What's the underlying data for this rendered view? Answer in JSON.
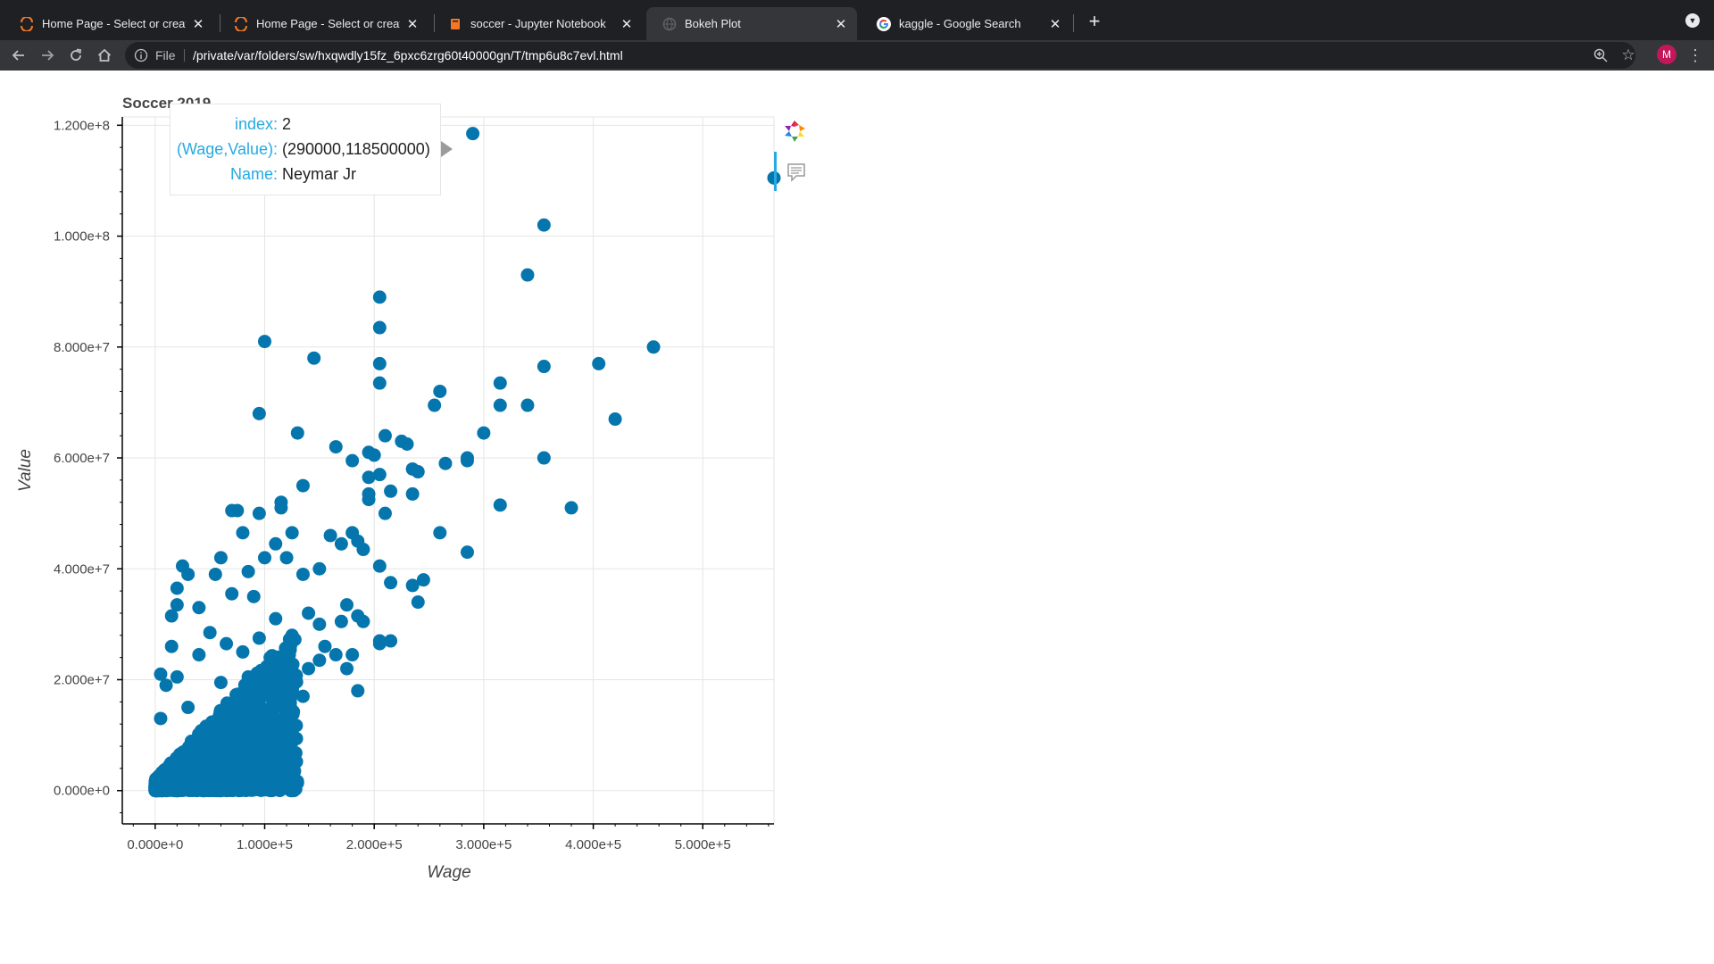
{
  "browser": {
    "tabs": [
      {
        "title": "Home Page - Select or create a",
        "icon": "jupyter-icon",
        "active": false
      },
      {
        "title": "Home Page - Select or create a",
        "icon": "jupyter-icon",
        "active": false
      },
      {
        "title": "soccer - Jupyter Notebook",
        "icon": "notebook-icon",
        "active": false
      },
      {
        "title": "Bokeh Plot",
        "icon": "globe-icon",
        "active": true
      },
      {
        "title": "kaggle - Google Search",
        "icon": "google-icon",
        "active": false
      }
    ],
    "address_scheme": "File",
    "url": "/private/var/folders/sw/hxqwdly15fz_6pxc6zrg60t40000gn/T/tmp6u8c7evl.html",
    "avatar_letter": "M"
  },
  "tooltip": {
    "rows": [
      {
        "key": "index:",
        "value": "2"
      },
      {
        "key": "(Wage,Value):",
        "value": "(290000,118500000)"
      },
      {
        "key": "Name:",
        "value": "Neymar Jr"
      }
    ]
  },
  "colors": {
    "point": "#0576ad",
    "tooltip_key": "#26aae1",
    "grid": "#e5e5e5"
  },
  "chart_data": {
    "type": "scatter",
    "title": "Soccer 2019",
    "xlabel": "Wage",
    "ylabel": "Value",
    "xlim": [
      -30000,
      565000
    ],
    "ylim": [
      -6000000,
      121500000
    ],
    "x_ticks": [
      0,
      100000,
      200000,
      300000,
      400000,
      500000
    ],
    "x_tick_labels": [
      "0.000e+0",
      "1.000e+5",
      "2.000e+5",
      "3.000e+5",
      "4.000e+5",
      "5.000e+5"
    ],
    "y_ticks": [
      0,
      20000000,
      40000000,
      60000000,
      80000000,
      100000000,
      120000000
    ],
    "y_tick_labels": [
      "0.000e+0",
      "2.000e+7",
      "4.000e+7",
      "6.000e+7",
      "8.000e+7",
      "1.000e+8",
      "1.200e+8"
    ],
    "grid": true,
    "highlighted_point": {
      "index": 2,
      "x": 290000,
      "y": 118500000,
      "name": "Neymar Jr"
    },
    "points": [
      [
        565000,
        110500000
      ],
      [
        290000,
        118500000
      ],
      [
        355000,
        102000000
      ],
      [
        340000,
        93000000
      ],
      [
        205000,
        89000000
      ],
      [
        205000,
        83500000
      ],
      [
        100000,
        81000000
      ],
      [
        145000,
        78000000
      ],
      [
        205000,
        77000000
      ],
      [
        205000,
        73500000
      ],
      [
        455000,
        80000000
      ],
      [
        405000,
        77000000
      ],
      [
        355000,
        76500000
      ],
      [
        315000,
        73500000
      ],
      [
        260000,
        72000000
      ],
      [
        255000,
        69500000
      ],
      [
        315000,
        69500000
      ],
      [
        340000,
        69500000
      ],
      [
        420000,
        67000000
      ],
      [
        95000,
        68000000
      ],
      [
        130000,
        64500000
      ],
      [
        210000,
        64000000
      ],
      [
        225000,
        63000000
      ],
      [
        230000,
        62500000
      ],
      [
        300000,
        64500000
      ],
      [
        165000,
        62000000
      ],
      [
        195000,
        61000000
      ],
      [
        200000,
        60500000
      ],
      [
        180000,
        59500000
      ],
      [
        285000,
        60000000
      ],
      [
        355000,
        60000000
      ],
      [
        285000,
        59500000
      ],
      [
        265000,
        59000000
      ],
      [
        235000,
        58000000
      ],
      [
        240000,
        57500000
      ],
      [
        205000,
        57000000
      ],
      [
        195000,
        56500000
      ],
      [
        135000,
        55000000
      ],
      [
        215000,
        54000000
      ],
      [
        235000,
        53500000
      ],
      [
        195000,
        53500000
      ],
      [
        195000,
        52500000
      ],
      [
        115000,
        52000000
      ],
      [
        115000,
        51000000
      ],
      [
        315000,
        51500000
      ],
      [
        380000,
        51000000
      ],
      [
        210000,
        50000000
      ],
      [
        75000,
        50500000
      ],
      [
        70000,
        50500000
      ],
      [
        95000,
        50000000
      ],
      [
        260000,
        46500000
      ],
      [
        285000,
        43000000
      ],
      [
        80000,
        46500000
      ],
      [
        125000,
        46500000
      ],
      [
        160000,
        46000000
      ],
      [
        180000,
        46500000
      ],
      [
        185000,
        45000000
      ],
      [
        170000,
        44500000
      ],
      [
        190000,
        43500000
      ],
      [
        205000,
        40500000
      ],
      [
        235000,
        37000000
      ],
      [
        245000,
        38000000
      ],
      [
        215000,
        37500000
      ],
      [
        240000,
        34000000
      ],
      [
        205000,
        27000000
      ],
      [
        215000,
        27000000
      ],
      [
        205000,
        26500000
      ],
      [
        185000,
        18000000
      ],
      [
        155000,
        26000000
      ],
      [
        165000,
        24500000
      ],
      [
        180000,
        24500000
      ],
      [
        175000,
        22000000
      ],
      [
        170000,
        30500000
      ],
      [
        190000,
        30500000
      ],
      [
        175000,
        33500000
      ],
      [
        185000,
        31500000
      ],
      [
        150000,
        40000000
      ],
      [
        135000,
        39000000
      ],
      [
        120000,
        42000000
      ],
      [
        110000,
        44500000
      ],
      [
        100000,
        42000000
      ],
      [
        85000,
        39500000
      ],
      [
        60000,
        42000000
      ],
      [
        55000,
        39000000
      ],
      [
        25000,
        40500000
      ],
      [
        30000,
        39000000
      ],
      [
        20000,
        36500000
      ],
      [
        20000,
        33500000
      ],
      [
        15000,
        31500000
      ],
      [
        15000,
        26000000
      ],
      [
        40000,
        33000000
      ],
      [
        70000,
        35500000
      ],
      [
        90000,
        35000000
      ],
      [
        110000,
        31000000
      ],
      [
        140000,
        32000000
      ],
      [
        125000,
        28000000
      ],
      [
        150000,
        30000000
      ],
      [
        150000,
        23500000
      ],
      [
        140000,
        22000000
      ],
      [
        110000,
        20000000
      ],
      [
        125000,
        18500000
      ],
      [
        135000,
        17000000
      ],
      [
        115000,
        15500000
      ],
      [
        120000,
        14000000
      ],
      [
        120000,
        7500000
      ],
      [
        110000,
        6500000
      ],
      [
        100000,
        4000000
      ],
      [
        95000,
        3500000
      ],
      [
        75000,
        2500000
      ],
      [
        85000,
        20500000
      ],
      [
        60000,
        19500000
      ],
      [
        30000,
        15000000
      ],
      [
        40000,
        24500000
      ],
      [
        50000,
        28500000
      ],
      [
        65000,
        26500000
      ],
      [
        80000,
        25000000
      ],
      [
        95000,
        27500000
      ],
      [
        105000,
        24000000
      ],
      [
        65000,
        11500000
      ],
      [
        45000,
        9000000
      ],
      [
        20000,
        20500000
      ],
      [
        10000,
        19000000
      ],
      [
        5000,
        21000000
      ],
      [
        5000,
        13000000
      ]
    ],
    "dense_cloud": {
      "x_max": 130000,
      "y_max": 40000000,
      "count": 1400
    }
  }
}
